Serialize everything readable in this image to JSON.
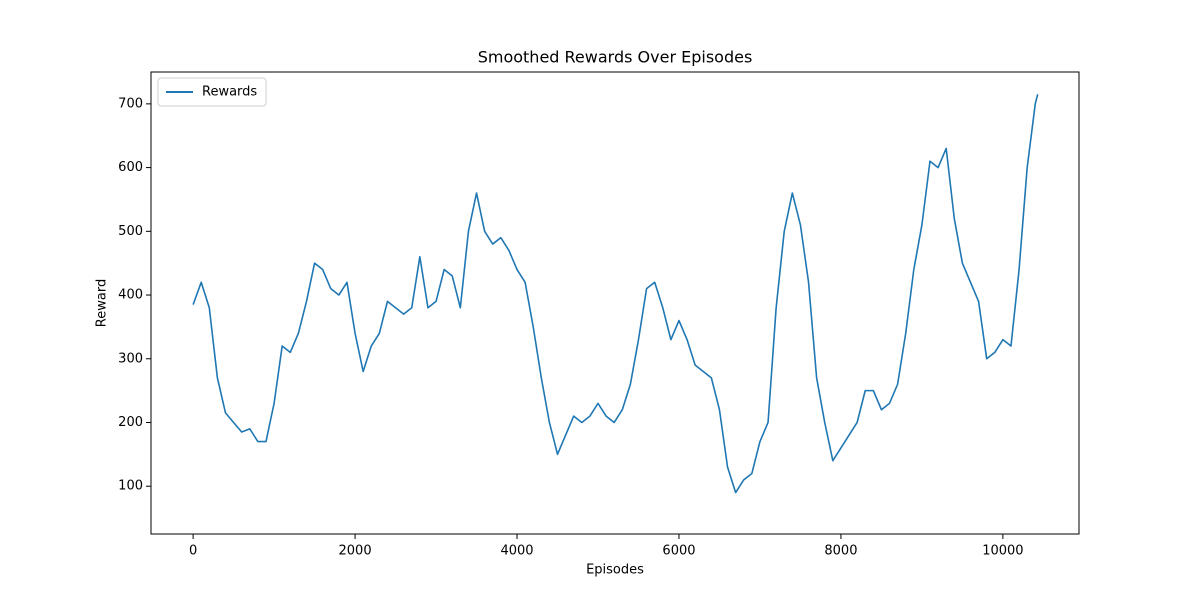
{
  "chart_data": {
    "type": "line",
    "title": "Smoothed Rewards Over Episodes",
    "x_label": "Episodes",
    "y_label": "Reward",
    "x": [
      0,
      100,
      200,
      300,
      400,
      500,
      600,
      700,
      800,
      900,
      1000,
      1100,
      1200,
      1300,
      1400,
      1500,
      1600,
      1700,
      1800,
      1900,
      2000,
      2100,
      2200,
      2300,
      2400,
      2500,
      2600,
      2700,
      2800,
      2900,
      3000,
      3100,
      3200,
      3300,
      3400,
      3500,
      3600,
      3700,
      3800,
      3900,
      4000,
      4100,
      4200,
      4300,
      4400,
      4500,
      4600,
      4700,
      4800,
      4900,
      5000,
      5100,
      5200,
      5300,
      5400,
      5500,
      5600,
      5700,
      5800,
      5900,
      6000,
      6100,
      6200,
      6300,
      6400,
      6500,
      6600,
      6700,
      6800,
      6900,
      7000,
      7100,
      7200,
      7300,
      7400,
      7500,
      7600,
      7700,
      7800,
      7900,
      8000,
      8100,
      8200,
      8300,
      8400,
      8500,
      8600,
      8700,
      8800,
      8900,
      9000,
      9100,
      9200,
      9300,
      9400,
      9500,
      9600,
      9700,
      9800,
      9900,
      10000,
      10100,
      10200,
      10300,
      10400,
      10430
    ],
    "series": [
      {
        "name": "Rewards",
        "color": "#1f77b4",
        "values": [
          385,
          420,
          380,
          270,
          215,
          200,
          185,
          190,
          170,
          170,
          230,
          320,
          310,
          340,
          390,
          450,
          440,
          410,
          400,
          420,
          340,
          280,
          320,
          340,
          390,
          380,
          370,
          380,
          460,
          380,
          390,
          440,
          430,
          380,
          500,
          560,
          500,
          480,
          490,
          470,
          440,
          420,
          350,
          270,
          200,
          150,
          180,
          210,
          200,
          210,
          230,
          210,
          200,
          220,
          260,
          330,
          410,
          420,
          380,
          330,
          360,
          330,
          290,
          280,
          270,
          220,
          130,
          90,
          110,
          120,
          170,
          200,
          380,
          500,
          560,
          510,
          420,
          270,
          200,
          140,
          160,
          180,
          200,
          250,
          250,
          220,
          230,
          260,
          340,
          440,
          510,
          610,
          600,
          630,
          520,
          450,
          420,
          390,
          300,
          310,
          330,
          320,
          440,
          600,
          700,
          715
        ]
      }
    ],
    "xlim": [
      -520,
      10940
    ],
    "ylim": [
      25,
      750
    ],
    "xticks": [
      0,
      2000,
      4000,
      6000,
      8000,
      10000
    ],
    "yticks": [
      100,
      200,
      300,
      400,
      500,
      600,
      700
    ],
    "legend": "upper left",
    "grid": false
  }
}
